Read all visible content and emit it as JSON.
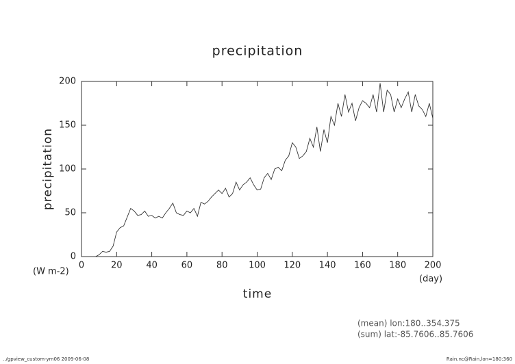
{
  "chart_data": {
    "type": "line",
    "title": "precipitation",
    "x_label": "time",
    "y_label": "precipitation",
    "x_unit": "(day)",
    "y_unit": "(W m-2)",
    "annotations": [
      "(mean) lon:180..354.375",
      "(sum) lat:-85.7606..85.7606"
    ],
    "footer_left": "../gpview_custom-ym06  2009-06-08",
    "footer_right": "Rain.nc@Rain,lon=180:360",
    "xlim": [
      0,
      200
    ],
    "xticks": [
      0,
      20,
      40,
      60,
      80,
      100,
      120,
      140,
      160,
      180,
      200
    ],
    "ylim": [
      0,
      200
    ],
    "yticks": [
      0,
      50,
      100,
      150,
      200
    ],
    "x": [
      0,
      2,
      4,
      6,
      8,
      10,
      12,
      14,
      16,
      18,
      20,
      22,
      24,
      26,
      28,
      30,
      32,
      34,
      36,
      38,
      40,
      42,
      44,
      46,
      48,
      50,
      52,
      54,
      56,
      58,
      60,
      62,
      64,
      66,
      68,
      70,
      72,
      74,
      76,
      78,
      80,
      82,
      84,
      86,
      88,
      90,
      92,
      94,
      96,
      98,
      100,
      102,
      104,
      106,
      108,
      110,
      112,
      114,
      116,
      118,
      120,
      122,
      124,
      126,
      128,
      130,
      132,
      134,
      136,
      138,
      140,
      142,
      144,
      146,
      148,
      150,
      152,
      154,
      156,
      158,
      160,
      162,
      164,
      166,
      168,
      170,
      172,
      174,
      176,
      178,
      180,
      182,
      184,
      186,
      188,
      190,
      192,
      194,
      196,
      198,
      200
    ],
    "series": [
      {
        "name": "precipitation",
        "color": "#333333",
        "values": [
          0,
          0,
          0,
          0,
          0,
          2,
          6,
          5,
          6,
          12,
          28,
          33,
          35,
          45,
          55,
          52,
          47,
          48,
          52,
          46,
          47,
          44,
          46,
          44,
          50,
          55,
          61,
          50,
          48,
          47,
          52,
          50,
          55,
          46,
          62,
          60,
          63,
          68,
          72,
          76,
          72,
          78,
          68,
          72,
          85,
          76,
          82,
          85,
          90,
          82,
          76,
          77,
          90,
          95,
          88,
          100,
          102,
          98,
          110,
          115,
          130,
          125,
          112,
          115,
          120,
          135,
          125,
          148,
          120,
          145,
          130,
          160,
          150,
          175,
          160,
          185,
          165,
          175,
          155,
          170,
          178,
          175,
          170,
          185,
          165,
          198,
          165,
          190,
          185,
          165,
          180,
          170,
          180,
          188,
          165,
          185,
          172,
          168,
          160,
          175,
          158
        ]
      }
    ]
  }
}
